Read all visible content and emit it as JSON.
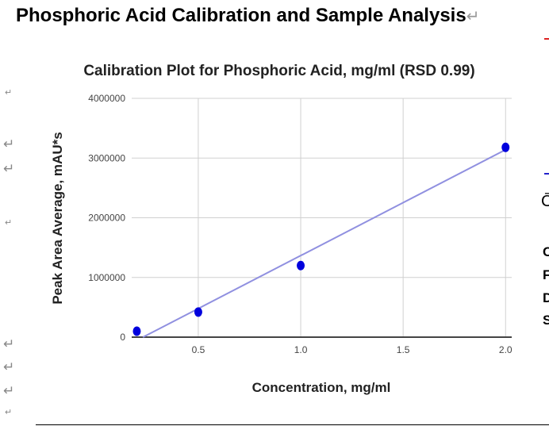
{
  "document": {
    "title": "Phosphoric Acid Calibration and Sample Analysis",
    "paragraph_mark": "↵",
    "right_cutoff_letters": [
      "C",
      "F",
      "D",
      "S"
    ],
    "right_cutoff_glyph": "C̄"
  },
  "chart_data": {
    "type": "scatter",
    "title": "Calibration Plot for Phosphoric Acid, mg/ml (RSD 0.99)",
    "xlabel": "Concentration, mg/ml",
    "ylabel": "Peak Area Average, mAU*s",
    "xlim": [
      0.175,
      2.03
    ],
    "ylim": [
      0,
      4000000
    ],
    "x_ticks": [
      "0.5",
      "1.0",
      "1.5",
      "2.0"
    ],
    "y_ticks": [
      "0",
      "1000000",
      "2000000",
      "3000000",
      "4000000"
    ],
    "grid": true,
    "legend": "none",
    "points": [
      {
        "x": 0.2,
        "y": 100000
      },
      {
        "x": 0.5,
        "y": 420000
      },
      {
        "x": 1.0,
        "y": 1200000
      },
      {
        "x": 2.0,
        "y": 3180000
      }
    ],
    "trendline": {
      "type": "linear",
      "slope": 1774000,
      "intercept": -408000
    },
    "colors": {
      "points": "#0000dd",
      "trendline": "#9090e0",
      "grid": "#d0d0d0",
      "axis": "#444444"
    }
  }
}
